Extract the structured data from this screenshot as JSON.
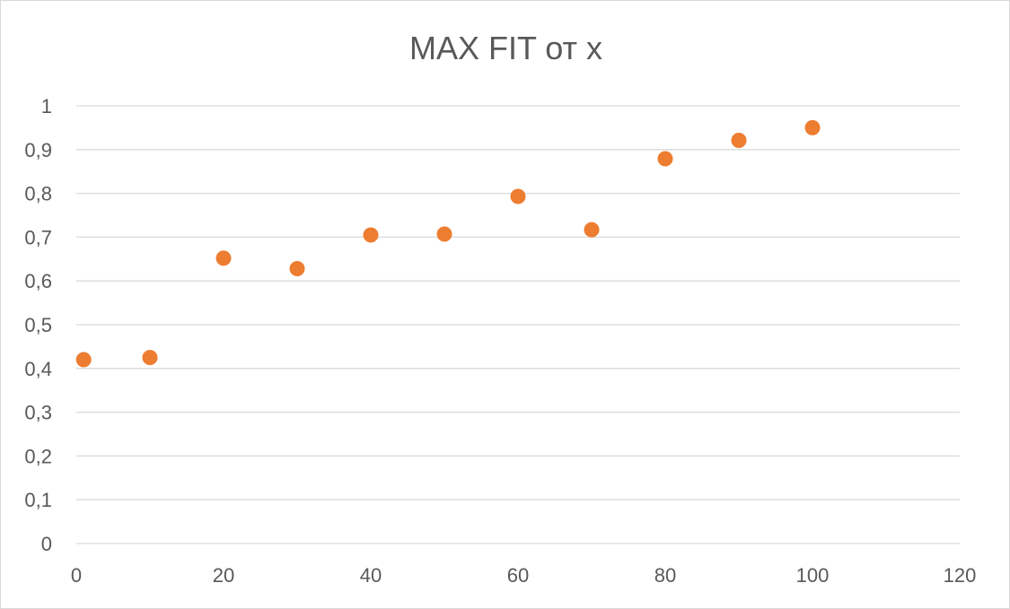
{
  "chart_data": {
    "type": "scatter",
    "title": "MAX FIT от x",
    "xlabel": "",
    "ylabel": "",
    "xlim": [
      0,
      120
    ],
    "ylim": [
      0,
      1
    ],
    "x_ticks": [
      0,
      20,
      40,
      60,
      80,
      100,
      120
    ],
    "y_ticks": [
      0,
      0.1,
      0.2,
      0.3,
      0.4,
      0.5,
      0.6,
      0.7,
      0.8,
      0.9,
      1
    ],
    "x_tick_labels": [
      "0",
      "20",
      "40",
      "60",
      "80",
      "100",
      "120"
    ],
    "y_tick_labels": [
      "0",
      "0,1",
      "0,2",
      "0,3",
      "0,4",
      "0,5",
      "0,6",
      "0,7",
      "0,8",
      "0,9",
      "1"
    ],
    "grid": "horizontal",
    "legend": "none",
    "marker_color": "#ed7d31",
    "series": [
      {
        "x": [
          1,
          10,
          20,
          30,
          40,
          50,
          60,
          70,
          80,
          90,
          100
        ],
        "y": [
          0.42,
          0.425,
          0.652,
          0.628,
          0.705,
          0.707,
          0.793,
          0.717,
          0.879,
          0.921,
          0.95
        ]
      }
    ]
  }
}
